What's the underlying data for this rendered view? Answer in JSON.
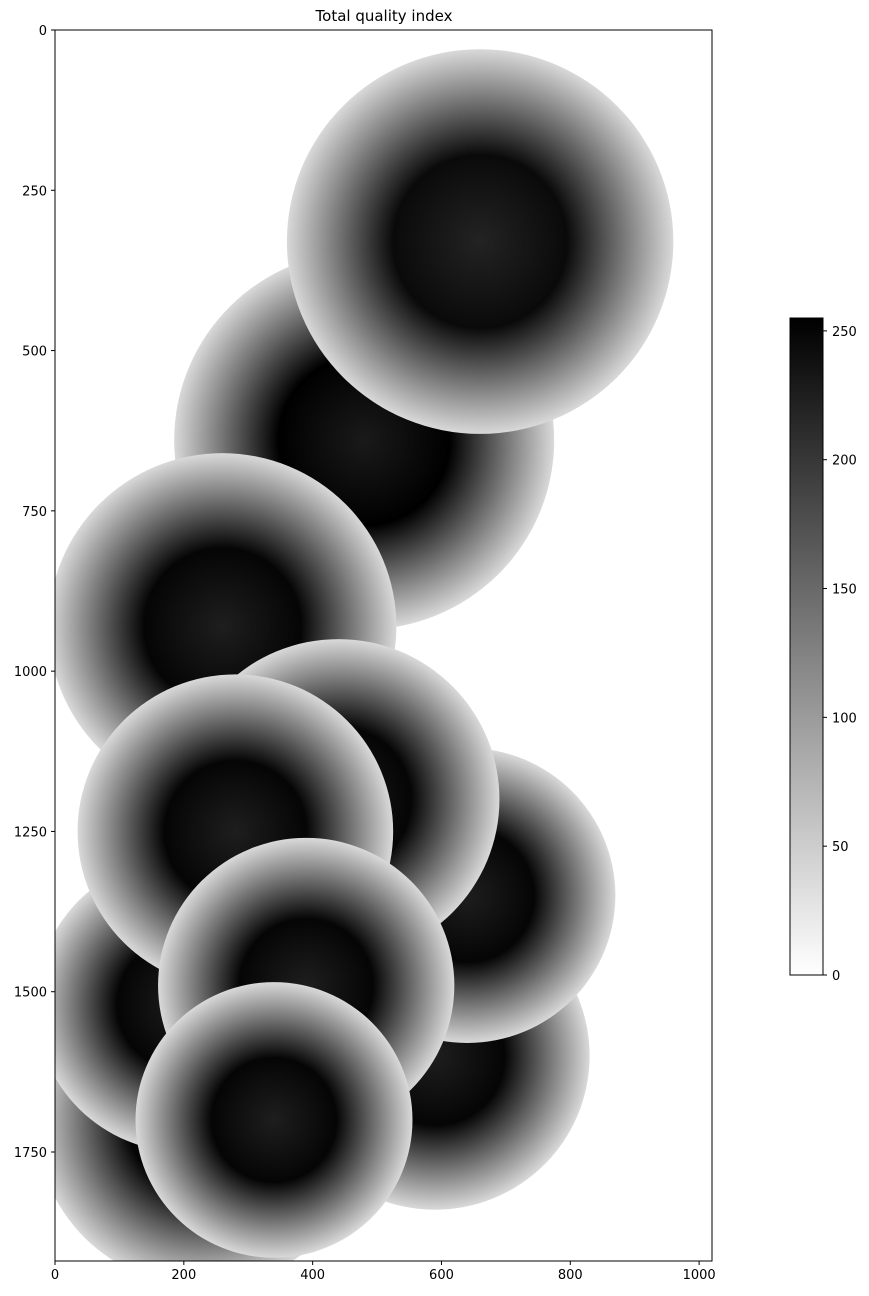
{
  "chart_data": {
    "type": "heatmap",
    "title": "Total quality index",
    "xlabel": "",
    "ylabel": "",
    "xlim": [
      0,
      1020
    ],
    "ylim": [
      1920,
      0
    ],
    "x_ticks": [
      0,
      200,
      400,
      600,
      800,
      1000
    ],
    "y_ticks": [
      0,
      250,
      500,
      750,
      1000,
      1250,
      1500,
      1750
    ],
    "colormap": "gray_r",
    "colorbar": {
      "range": [
        0,
        255
      ],
      "ticks": [
        0,
        50,
        100,
        150,
        200,
        250
      ],
      "low_color": "#ffffff",
      "high_color": "#000000"
    },
    "radar_composites": [
      {
        "cx": 480,
        "cy": 640,
        "r": 295,
        "center_value": 255
      },
      {
        "cx": 660,
        "cy": 330,
        "r": 300,
        "center_value": 245
      },
      {
        "cx": 230,
        "cy": 1700,
        "r": 260,
        "center_value": 250
      },
      {
        "cx": 590,
        "cy": 1600,
        "r": 240,
        "center_value": 250
      },
      {
        "cx": 640,
        "cy": 1350,
        "r": 230,
        "center_value": 250
      },
      {
        "cx": 260,
        "cy": 930,
        "r": 270,
        "center_value": 250
      },
      {
        "cx": 200,
        "cy": 1520,
        "r": 230,
        "center_value": 250
      },
      {
        "cx": 440,
        "cy": 1200,
        "r": 250,
        "center_value": 250
      },
      {
        "cx": 280,
        "cy": 1250,
        "r": 245,
        "center_value": 250
      },
      {
        "cx": 390,
        "cy": 1490,
        "r": 230,
        "center_value": 250
      },
      {
        "cx": 340,
        "cy": 1700,
        "r": 215,
        "center_value": 250
      }
    ],
    "grid": false,
    "legend": "colorbar-right"
  }
}
